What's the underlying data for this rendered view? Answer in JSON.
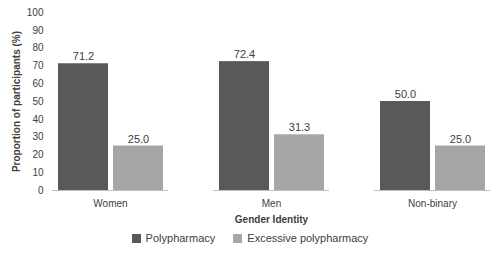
{
  "chart_data": {
    "type": "bar",
    "x_label": "Gender Identity",
    "y_label": "Proportion of participants (%)",
    "categories": [
      "Women",
      "Men",
      "Non-binary"
    ],
    "series": [
      {
        "name": "Polypharmacy",
        "color": "#595959",
        "values": [
          71.2,
          72.4,
          50.0
        ],
        "value_labels": [
          "71.2",
          "72.4",
          "50.0"
        ]
      },
      {
        "name": "Excessive polypharmacy",
        "color": "#a6a6a6",
        "values": [
          25.0,
          31.3,
          25.0
        ],
        "value_labels": [
          "25.0",
          "31.3",
          "25.0"
        ]
      }
    ],
    "ylim": [
      0,
      100
    ],
    "yticks": [
      0,
      10,
      20,
      30,
      40,
      50,
      60,
      70,
      80,
      90,
      100
    ],
    "grid": false,
    "legend": "bottom",
    "data_labels": true
  }
}
